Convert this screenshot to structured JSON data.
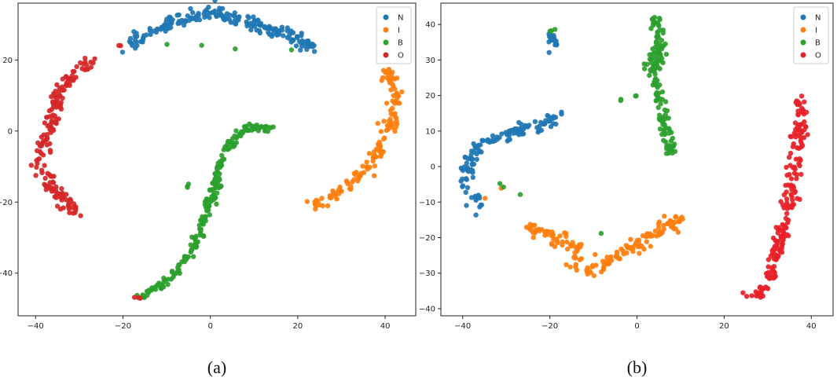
{
  "chart_data": [
    {
      "type": "scatter",
      "caption": "(a)",
      "xlim": [
        -44,
        47
      ],
      "ylim": [
        -52,
        36
      ],
      "xticks": [
        -40,
        -20,
        0,
        20,
        40
      ],
      "yticks": [
        -40,
        -20,
        0,
        20
      ],
      "legend": {
        "placement": "top-right",
        "entries": [
          "N",
          "I",
          "B",
          "O"
        ]
      },
      "grid": false,
      "series": [
        {
          "name": "N",
          "color": "#1f77b4",
          "clusters": [
            {
              "pts": [
                [
                  -19,
                  24.5
                ],
                [
                  -15,
                  27
                ],
                [
                  -10,
                  30
                ],
                [
                  -5,
                  32
                ],
                [
                  0,
                  33.5
                ],
                [
                  5,
                  32
                ],
                [
                  10,
                  30
                ],
                [
                  15,
                  28
                ],
                [
                  20,
                  26
                ],
                [
                  24,
                  23
                ]
              ],
              "spread": 1.6,
              "n": 200
            }
          ]
        },
        {
          "name": "I",
          "color": "#ff7f0e",
          "clusters": [
            {
              "pts": [
                [
                  23,
                  -21
                ],
                [
                  28,
                  -18
                ],
                [
                  33,
                  -14
                ],
                [
                  37,
                  -9
                ],
                [
                  40,
                  -2
                ],
                [
                  42,
                  5
                ],
                [
                  42,
                  12
                ],
                [
                  40,
                  18
                ]
              ],
              "spread": 1.3,
              "n": 140
            }
          ]
        },
        {
          "name": "B",
          "color": "#2ca02c",
          "clusters": [
            {
              "pts": [
                [
                  -16,
                  -47
                ],
                [
                  -12,
                  -44
                ],
                [
                  -8,
                  -40
                ],
                [
                  -5,
                  -35
                ],
                [
                  -3,
                  -30
                ],
                [
                  -1,
                  -23
                ],
                [
                  1,
                  -16
                ],
                [
                  2,
                  -10
                ],
                [
                  4,
                  -5
                ],
                [
                  6,
                  -1
                ],
                [
                  9,
                  1
                ],
                [
                  14,
                  1
                ]
              ],
              "spread": 0.9,
              "n": 220
            },
            {
              "pts": [
                [
                  -5,
                  -15
                ],
                [
                  -5,
                  -16
                ]
              ],
              "spread": 0.5,
              "n": 3
            },
            {
              "pts": [
                [
                  -14,
                  25
                ],
                [
                  27,
                  22
                ]
              ],
              "spread": 0.4,
              "n": 4
            }
          ]
        },
        {
          "name": "O",
          "color": "#d62728",
          "clusters": [
            {
              "pts": [
                [
                  -26,
                  20
                ],
                [
                  -31,
                  17
                ],
                [
                  -35,
                  10
                ],
                [
                  -36,
                  4
                ],
                [
                  -38,
                  -4
                ],
                [
                  -39,
                  -10
                ],
                [
                  -37,
                  -14
                ],
                [
                  -35,
                  -18
                ],
                [
                  -33,
                  -20
                ],
                [
                  -31,
                  -23
                ]
              ],
              "spread": 1.4,
              "n": 180
            },
            {
              "pts": [
                [
                  -18,
                  -47
                ],
                [
                  -16,
                  -47
                ]
              ],
              "spread": 0.3,
              "n": 3
            },
            {
              "pts": [
                [
                  -21,
                  24
                ],
                [
                  -20,
                  24.5
                ]
              ],
              "spread": 0.3,
              "n": 2
            }
          ]
        }
      ]
    },
    {
      "type": "scatter",
      "caption": "(b)",
      "xlim": [
        -45,
        45
      ],
      "ylim": [
        -42,
        46
      ],
      "xticks": [
        -40,
        -20,
        0,
        20,
        40
      ],
      "yticks": [
        -40,
        -30,
        -20,
        -10,
        0,
        10,
        20,
        30,
        40
      ],
      "legend": {
        "placement": "top-right",
        "entries": [
          "N",
          "I",
          "B",
          "O"
        ]
      },
      "grid": false,
      "series": [
        {
          "name": "N",
          "color": "#1f77b4",
          "clusters": [
            {
              "pts": [
                [
                  -20,
                  37
                ],
                [
                  -18.5,
                  35
                ],
                [
                  -20,
                  32
                ]
              ],
              "spread": 0.9,
              "n": 22
            },
            {
              "pts": [
                [
                  -36,
                  -11
                ],
                [
                  -39,
                  -5
                ],
                [
                  -39,
                  0
                ],
                [
                  -37,
                  5
                ],
                [
                  -33,
                  8
                ],
                [
                  -28,
                  10
                ],
                [
                  -22,
                  12
                ],
                [
                  -17,
                  15
                ]
              ],
              "spread": 1.4,
              "n": 130
            }
          ]
        },
        {
          "name": "I",
          "color": "#ff7f0e",
          "clusters": [
            {
              "pts": [
                [
                  -25,
                  -17
                ],
                [
                  -20,
                  -19
                ],
                [
                  -15,
                  -23
                ],
                [
                  -12,
                  -30
                ],
                [
                  -8,
                  -28
                ],
                [
                  -4,
                  -25
                ],
                [
                  0,
                  -22
                ],
                [
                  5,
                  -18
                ],
                [
                  10,
                  -15
                ]
              ],
              "spread": 1.7,
              "n": 170
            },
            {
              "pts": [
                [
                  -35,
                  -9
                ],
                [
                  -31,
                  -6
                ]
              ],
              "spread": 0.2,
              "n": 2
            }
          ]
        },
        {
          "name": "B",
          "color": "#2ca02c",
          "clusters": [
            {
              "pts": [
                [
                  4,
                  42
                ],
                [
                  5,
                  35
                ],
                [
                  4,
                  28
                ],
                [
                  5,
                  20
                ],
                [
                  6,
                  12
                ],
                [
                  7,
                  7
                ],
                [
                  8,
                  3
                ]
              ],
              "spread": 1.3,
              "n": 150
            },
            {
              "pts": [
                [
                  -20,
                  38
                ],
                [
                  -18,
                  39
                ]
              ],
              "spread": 0.3,
              "n": 3
            },
            {
              "pts": [
                [
                  -5,
                  19.5
                ],
                [
                  -4,
                  18.5
                ],
                [
                  0,
                  20
                ]
              ],
              "spread": 0.4,
              "n": 4
            },
            {
              "pts": [
                [
                  -30,
                  -4
                ],
                [
                  -32,
                  -5
                ],
                [
                  24,
                  -37
                ]
              ],
              "spread": 0.3,
              "n": 4
            }
          ]
        },
        {
          "name": "O",
          "color": "#e82128",
          "clusters": [
            {
              "pts": [
                [
                  26,
                  -37
                ],
                [
                  29,
                  -35
                ],
                [
                  31,
                  -30
                ],
                [
                  33,
                  -20
                ],
                [
                  35,
                  -10
                ],
                [
                  36,
                  0
                ],
                [
                  37,
                  8
                ],
                [
                  38,
                  15
                ],
                [
                  37,
                  20
                ]
              ],
              "spread": 1.3,
              "n": 200
            }
          ]
        }
      ]
    }
  ]
}
